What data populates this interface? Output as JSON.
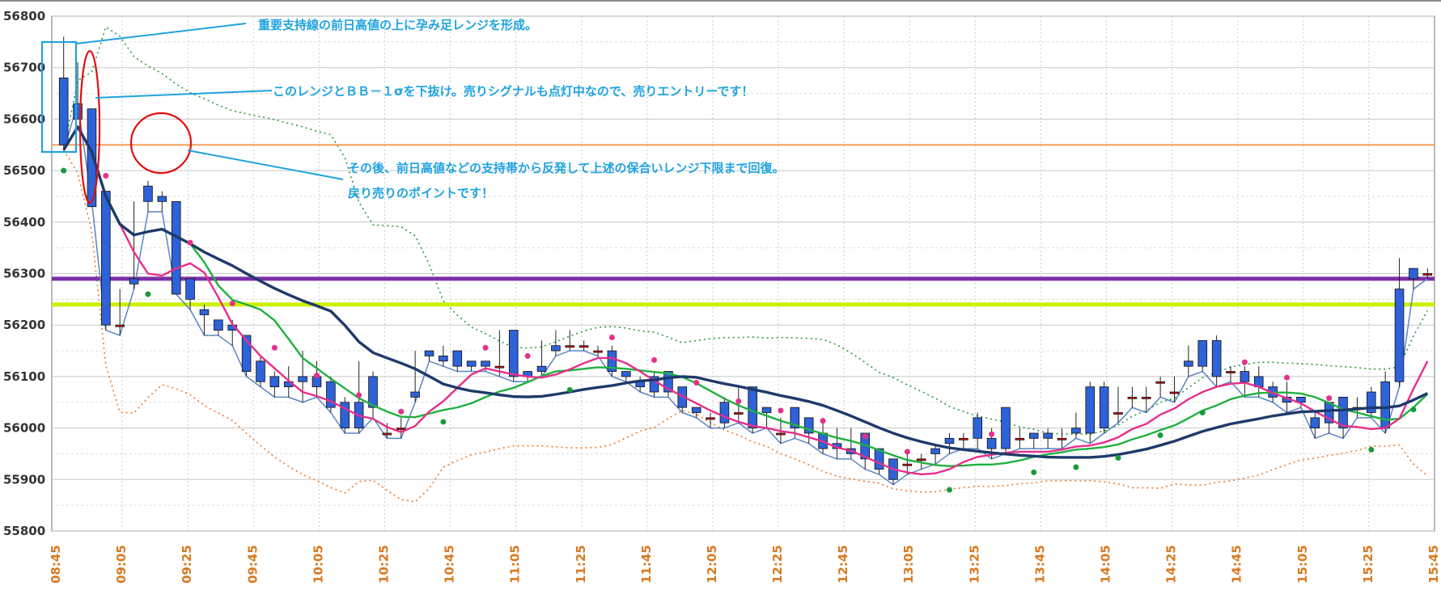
{
  "chart_data": {
    "type": "candlestick",
    "ylim": [
      55800,
      56800
    ],
    "y_ticks": [
      "56800",
      "56700",
      "56600",
      "56500",
      "56400",
      "56300",
      "56200",
      "56100",
      "56000",
      "55900",
      "55800"
    ],
    "x_ticks": [
      "08:45",
      "09:05",
      "09:25",
      "09:45",
      "10:05",
      "10:25",
      "10:45",
      "11:05",
      "11:25",
      "11:45",
      "12:05",
      "12:25",
      "12:45",
      "13:05",
      "13:25",
      "13:45",
      "14:05",
      "14:25",
      "14:45",
      "15:05",
      "15:25",
      "15:45"
    ],
    "grid": true,
    "candles": [
      [
        56680,
        56760,
        56550,
        56540
      ],
      [
        56630,
        56710,
        56600,
        56630
      ],
      [
        56620,
        56620,
        56430,
        56440
      ],
      [
        56460,
        56460,
        56200,
        56190
      ],
      [
        56200,
        56270,
        56200,
        56180
      ],
      [
        56290,
        56440,
        56280,
        56270
      ],
      [
        56470,
        56480,
        56440,
        56420
      ],
      [
        56450,
        56460,
        56440,
        56420
      ],
      [
        56440,
        56440,
        56260,
        56260
      ],
      [
        56290,
        56290,
        56250,
        56230
      ],
      [
        56230,
        56240,
        56220,
        56180
      ],
      [
        56210,
        56210,
        56190,
        56180
      ],
      [
        56200,
        56210,
        56190,
        56160
      ],
      [
        56180,
        56180,
        56110,
        56100
      ],
      [
        56130,
        56140,
        56090,
        56080
      ],
      [
        56100,
        56110,
        56080,
        56060
      ],
      [
        56090,
        56120,
        56080,
        56060
      ],
      [
        56100,
        56150,
        56090,
        56050
      ],
      [
        56100,
        56130,
        56080,
        56060
      ],
      [
        56090,
        56100,
        56040,
        56030
      ],
      [
        56050,
        56060,
        56000,
        55990
      ],
      [
        56050,
        56130,
        56000,
        55990
      ],
      [
        56100,
        56110,
        56040,
        56020
      ],
      [
        55990,
        56010,
        55990,
        55980
      ],
      [
        56000,
        56020,
        56000,
        55980
      ],
      [
        56070,
        56150,
        56060,
        56050
      ],
      [
        56150,
        56150,
        56140,
        56130
      ],
      [
        56140,
        56160,
        56130,
        56120
      ],
      [
        56150,
        56150,
        56120,
        56110
      ],
      [
        56130,
        56130,
        56120,
        56110
      ],
      [
        56130,
        56130,
        56120,
        56110
      ],
      [
        56120,
        56190,
        56120,
        56100
      ],
      [
        56190,
        56190,
        56100,
        56090
      ],
      [
        56110,
        56110,
        56100,
        56090
      ],
      [
        56120,
        56170,
        56110,
        56100
      ],
      [
        56160,
        56190,
        56150,
        56140
      ],
      [
        56160,
        56190,
        56160,
        56150
      ],
      [
        56160,
        56170,
        56160,
        56150
      ],
      [
        56150,
        56160,
        56150,
        56140
      ],
      [
        56150,
        56160,
        56110,
        56100
      ],
      [
        56110,
        56110,
        56100,
        56090
      ],
      [
        56090,
        56100,
        56080,
        56070
      ],
      [
        56100,
        56110,
        56070,
        56060
      ],
      [
        56110,
        56110,
        56070,
        56060
      ],
      [
        56080,
        56080,
        56040,
        56030
      ],
      [
        56040,
        56040,
        56030,
        56020
      ],
      [
        56020,
        56030,
        56020,
        56000
      ],
      [
        56050,
        56060,
        56010,
        56000
      ],
      [
        56030,
        56080,
        56030,
        56010
      ],
      [
        56080,
        56080,
        56000,
        55990
      ],
      [
        56040,
        56040,
        56030,
        56000
      ],
      [
        55990,
        56020,
        55990,
        55970
      ],
      [
        56040,
        56040,
        56000,
        55980
      ],
      [
        56020,
        56020,
        55990,
        55970
      ],
      [
        55990,
        56020,
        55960,
        55950
      ],
      [
        55970,
        56000,
        55960,
        55940
      ],
      [
        55960,
        56000,
        55950,
        55940
      ],
      [
        55990,
        55990,
        55940,
        55920
      ],
      [
        55960,
        55960,
        55920,
        55910
      ],
      [
        55940,
        55940,
        55900,
        55890
      ],
      [
        55930,
        55950,
        55930,
        55910
      ],
      [
        55940,
        55950,
        55940,
        55920
      ],
      [
        55960,
        55970,
        55950,
        55930
      ],
      [
        55980,
        55990,
        55970,
        55950
      ],
      [
        55980,
        55990,
        55980,
        55960
      ],
      [
        56020,
        56030,
        55980,
        55960
      ],
      [
        55980,
        56000,
        55960,
        55940
      ],
      [
        56040,
        56040,
        55960,
        55950
      ],
      [
        55980,
        56000,
        55980,
        55960
      ],
      [
        55990,
        55990,
        55980,
        55960
      ],
      [
        55990,
        56000,
        55980,
        55960
      ],
      [
        55980,
        56000,
        55980,
        55960
      ],
      [
        56000,
        56030,
        55990,
        55980
      ],
      [
        56080,
        56090,
        55990,
        55970
      ],
      [
        56080,
        56090,
        56000,
        55990
      ],
      [
        56030,
        56080,
        56030,
        56010
      ],
      [
        56060,
        56080,
        56060,
        56040
      ],
      [
        56060,
        56080,
        56060,
        56030
      ],
      [
        56090,
        56100,
        56090,
        56060
      ],
      [
        56070,
        56100,
        56070,
        56050
      ],
      [
        56130,
        56160,
        56120,
        56100
      ],
      [
        56170,
        56170,
        56120,
        56110
      ],
      [
        56170,
        56180,
        56100,
        56080
      ],
      [
        56110,
        56120,
        56110,
        56090
      ],
      [
        56110,
        56120,
        56090,
        56060
      ],
      [
        56100,
        56120,
        56080,
        56060
      ],
      [
        56080,
        56090,
        56060,
        56050
      ],
      [
        56060,
        56090,
        56050,
        56030
      ],
      [
        56060,
        56060,
        56050,
        56040
      ],
      [
        56020,
        56030,
        56000,
        55980
      ],
      [
        56050,
        56050,
        56010,
        55990
      ],
      [
        56060,
        56060,
        56000,
        55980
      ],
      [
        56040,
        56060,
        56040,
        56020
      ],
      [
        56070,
        56080,
        56030,
        56020
      ],
      [
        56090,
        56110,
        56000,
        55990
      ],
      [
        56270,
        56330,
        56090,
        56080
      ],
      [
        56310,
        56310,
        56290,
        56270
      ],
      [
        56300,
        56310,
        56300,
        56290
      ]
    ],
    "horizontal_lines": [
      {
        "value": 56550,
        "color": "#f5a05a"
      },
      {
        "value": 56290,
        "color": "#7b2fa6"
      },
      {
        "value": 56240,
        "color": "#ccf000"
      }
    ],
    "annotations": [
      "重要支持線の前日高値の上に孕み足レンジを形成。",
      "このレンジとＢＢ－１σを下抜け。売りシグナルも点灯中なので、売りエントリーです！",
      "その後、前日高値などの支持帯から反発して上述の保合いレンジ下限まで回復。",
      "戻り売りのポイントです！"
    ],
    "colors": {
      "up_candle": "#e01010",
      "down_candle": "#2e62d8",
      "ma_fast": "#e62f8a",
      "ma_mid": "#20b040",
      "ma_slow": "#1e3a6a",
      "price_line": "#5a85c4",
      "bb_upper": "#2a9a3a",
      "bb_lower": "#e87a2a",
      "callout": "#1fa3e0",
      "circle": "#e01010"
    }
  }
}
